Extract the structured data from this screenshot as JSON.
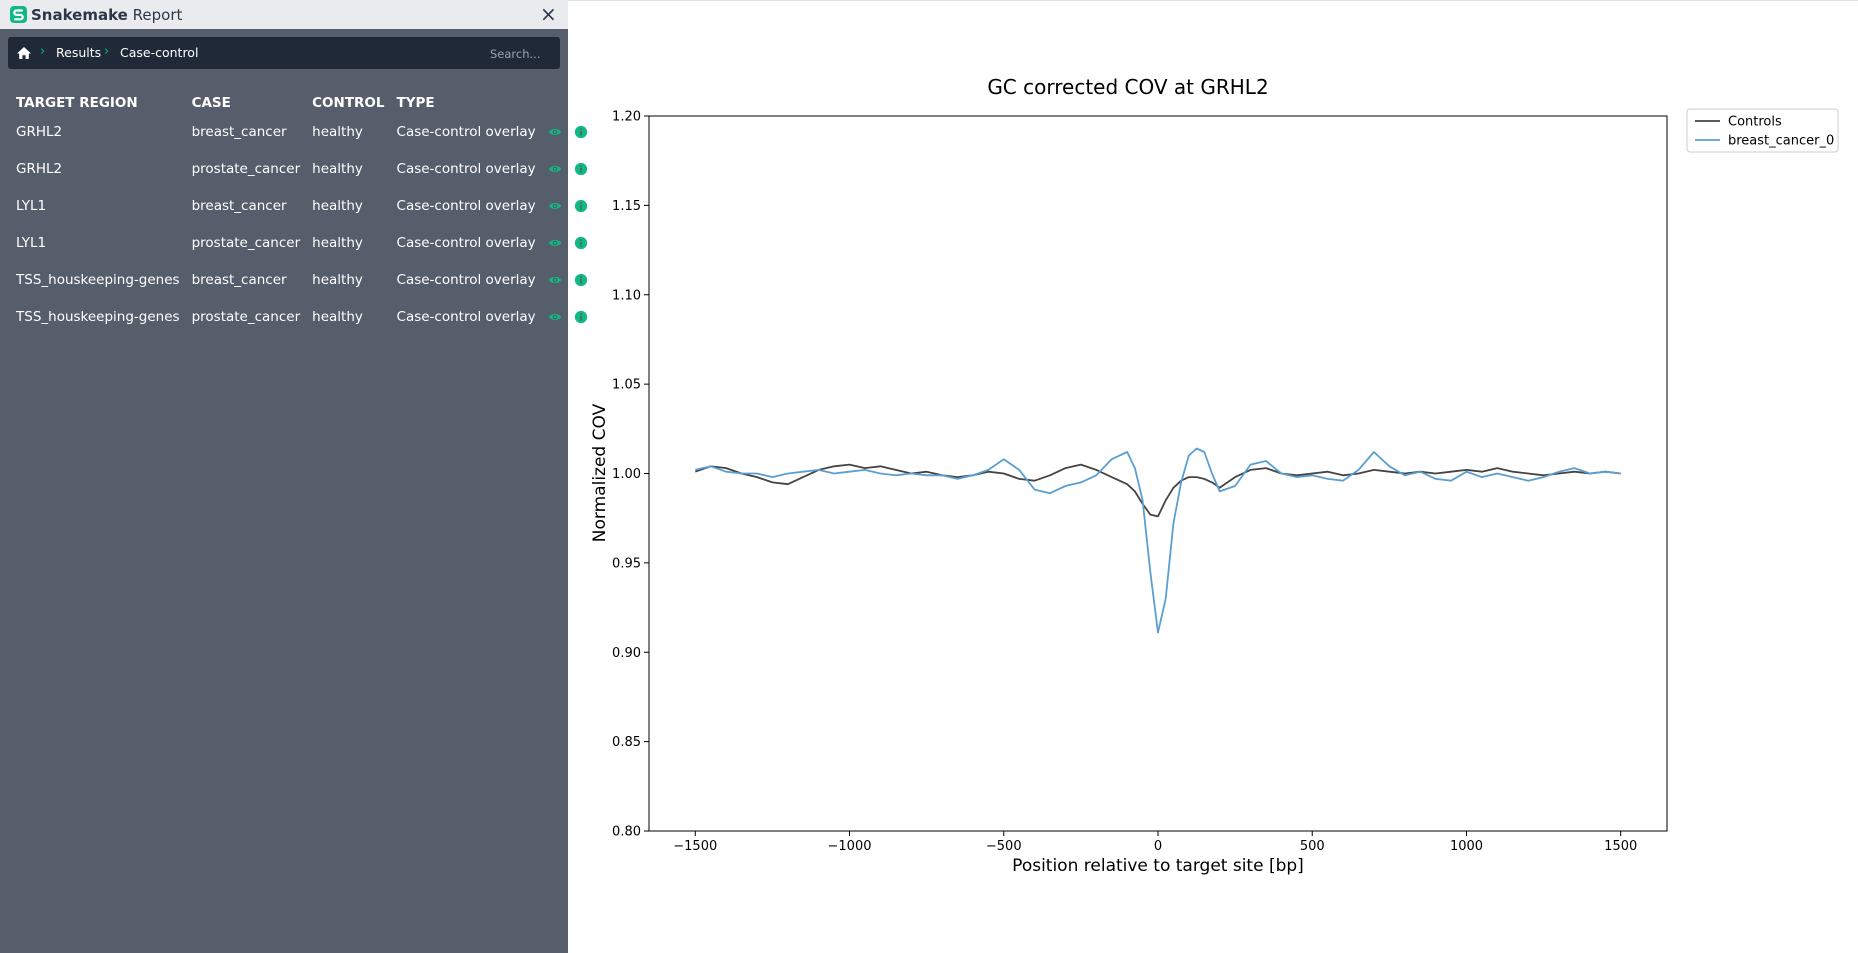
{
  "app": {
    "title_bold": "Snakemake",
    "title_light": "Report",
    "close_label": "×"
  },
  "breadcrumb": {
    "items": [
      "Results",
      "Case-control"
    ]
  },
  "search": {
    "placeholder": "Search..."
  },
  "table": {
    "columns": [
      "TARGET REGION",
      "CASE",
      "CONTROL",
      "TYPE"
    ],
    "rows": [
      [
        "GRHL2",
        "breast_cancer",
        "healthy",
        "Case-control overlay"
      ],
      [
        "GRHL2",
        "prostate_cancer",
        "healthy",
        "Case-control overlay"
      ],
      [
        "LYL1",
        "breast_cancer",
        "healthy",
        "Case-control overlay"
      ],
      [
        "LYL1",
        "prostate_cancer",
        "healthy",
        "Case-control overlay"
      ],
      [
        "TSS_houskeeping-genes",
        "breast_cancer",
        "healthy",
        "Case-control overlay"
      ],
      [
        "TSS_houskeeping-genes",
        "prostate_cancer",
        "healthy",
        "Case-control overlay"
      ]
    ],
    "row_icons": [
      "eye-icon",
      "info-icon"
    ]
  },
  "colors": {
    "sidebar": "#565d6b",
    "titlebar": "#e9ebee",
    "navbar": "#1f2937",
    "accent": "#10b981",
    "controls": "#444444",
    "case": "#5b9fd0"
  },
  "chart_data": {
    "type": "line",
    "title": "GC corrected COV at GRHL2",
    "xlabel": "Position relative to target site [bp]",
    "ylabel": "Normalized COV",
    "xlim": [
      -1650,
      1650
    ],
    "ylim": [
      0.8,
      1.2
    ],
    "xticks": [
      -1500,
      -1000,
      -500,
      0,
      500,
      1000,
      1500
    ],
    "xtick_labels": [
      "−1500",
      "−1000",
      "−500",
      "0",
      "500",
      "1000",
      "1500"
    ],
    "yticks": [
      0.8,
      0.85,
      0.9,
      0.95,
      1.0,
      1.05,
      1.1,
      1.15,
      1.2
    ],
    "ytick_labels": [
      "0.80",
      "0.85",
      "0.90",
      "0.95",
      "1.00",
      "1.05",
      "1.10",
      "1.15",
      "1.20"
    ],
    "legend_position": "upper-right-outside",
    "x": [
      -1500,
      -1450,
      -1400,
      -1350,
      -1300,
      -1250,
      -1200,
      -1150,
      -1100,
      -1050,
      -1000,
      -950,
      -900,
      -850,
      -800,
      -750,
      -700,
      -650,
      -600,
      -550,
      -500,
      -450,
      -400,
      -350,
      -300,
      -250,
      -200,
      -150,
      -100,
      -75,
      -50,
      -25,
      0,
      25,
      50,
      75,
      100,
      125,
      150,
      175,
      200,
      250,
      300,
      350,
      400,
      450,
      500,
      550,
      600,
      650,
      700,
      750,
      800,
      850,
      900,
      950,
      1000,
      1050,
      1100,
      1150,
      1200,
      1250,
      1300,
      1350,
      1400,
      1450,
      1500
    ],
    "series": [
      {
        "name": "Controls",
        "color": "#444444",
        "values": [
          1.001,
          1.004,
          1.003,
          1.0,
          0.998,
          0.995,
          0.994,
          0.998,
          1.002,
          1.004,
          1.005,
          1.003,
          1.004,
          1.002,
          1.0,
          1.001,
          0.999,
          0.998,
          0.999,
          1.001,
          1.0,
          0.997,
          0.996,
          0.999,
          1.003,
          1.005,
          1.002,
          0.998,
          0.994,
          0.99,
          0.983,
          0.977,
          0.976,
          0.985,
          0.992,
          0.996,
          0.998,
          0.998,
          0.997,
          0.995,
          0.992,
          0.998,
          1.002,
          1.003,
          1.0,
          0.999,
          1.0,
          1.001,
          0.999,
          1.0,
          1.002,
          1.001,
          1.0,
          1.001,
          1.0,
          1.001,
          1.002,
          1.001,
          1.003,
          1.001,
          1.0,
          0.999,
          1.0,
          1.001,
          1.0,
          1.001,
          1.0
        ]
      },
      {
        "name": "breast_cancer_0",
        "color": "#5b9fd0",
        "values": [
          1.002,
          1.004,
          1.001,
          1.0,
          1.0,
          0.998,
          1.0,
          1.001,
          1.002,
          1.0,
          1.001,
          1.002,
          1.0,
          0.999,
          1.0,
          0.999,
          0.999,
          0.997,
          0.999,
          1.002,
          1.008,
          1.002,
          0.991,
          0.989,
          0.993,
          0.995,
          0.999,
          1.008,
          1.012,
          1.003,
          0.985,
          0.945,
          0.911,
          0.93,
          0.972,
          0.995,
          1.01,
          1.014,
          1.012,
          1.0,
          0.99,
          0.993,
          1.005,
          1.007,
          1.0,
          0.998,
          0.999,
          0.997,
          0.996,
          1.002,
          1.012,
          1.004,
          0.999,
          1.001,
          0.997,
          0.996,
          1.001,
          0.998,
          1.0,
          0.998,
          0.996,
          0.998,
          1.001,
          1.003,
          1.0,
          1.001,
          1.0
        ]
      }
    ]
  }
}
